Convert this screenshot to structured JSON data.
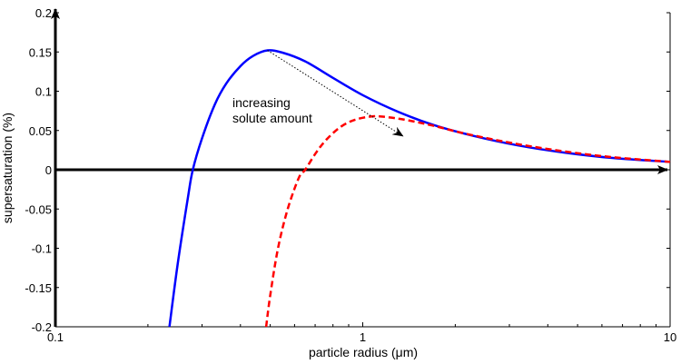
{
  "chart_data": {
    "type": "line",
    "x_scale": "log",
    "xlim": [
      0.1,
      10
    ],
    "ylim": [
      -0.2,
      0.2
    ],
    "xlabel": "particle radius (μm)",
    "ylabel": "supersaturation (%)",
    "x_ticks": [
      0.1,
      1,
      10
    ],
    "x_tick_labels": [
      "0.1",
      "1",
      "10"
    ],
    "y_ticks": [
      -0.2,
      -0.15,
      -0.1,
      -0.05,
      0,
      0.05,
      0.1,
      0.15,
      0.2
    ],
    "y_tick_labels": [
      "-0.2",
      "-0.15",
      "-0.1",
      "-0.05",
      "0",
      "0.05",
      "0.1",
      "0.15",
      "0.2"
    ],
    "grid": false,
    "series": [
      {
        "color": "#0000ff",
        "style": "solid",
        "x": [
          0.235,
          0.25,
          0.27,
          0.28,
          0.3,
          0.33,
          0.36,
          0.4,
          0.44,
          0.49,
          0.55,
          0.65,
          0.8,
          1.0,
          1.3,
          1.7,
          2.3,
          3.2,
          4.5,
          6.5,
          10
        ],
        "y": [
          -0.2,
          -0.12,
          -0.035,
          0.0,
          0.04,
          0.083,
          0.11,
          0.132,
          0.145,
          0.152,
          0.149,
          0.138,
          0.117,
          0.095,
          0.074,
          0.057,
          0.043,
          0.031,
          0.022,
          0.015,
          0.01
        ]
      },
      {
        "color": "#ff0000",
        "style": "dashed",
        "x": [
          0.485,
          0.5,
          0.53,
          0.57,
          0.62,
          0.65,
          0.7,
          0.76,
          0.85,
          0.95,
          1.08,
          1.2,
          1.4,
          1.7,
          2.1,
          2.7,
          3.5,
          4.8,
          6.5,
          10
        ],
        "y": [
          -0.2,
          -0.16,
          -0.1,
          -0.05,
          -0.01,
          0.0,
          0.02,
          0.038,
          0.055,
          0.064,
          0.068,
          0.067,
          0.063,
          0.056,
          0.047,
          0.038,
          0.03,
          0.022,
          0.016,
          0.01
        ]
      }
    ],
    "annotation": {
      "lines": [
        "increasing",
        "solute amount"
      ],
      "arrow_from": [
        0.49,
        0.152
      ],
      "arrow_to": [
        1.35,
        0.043
      ]
    }
  }
}
